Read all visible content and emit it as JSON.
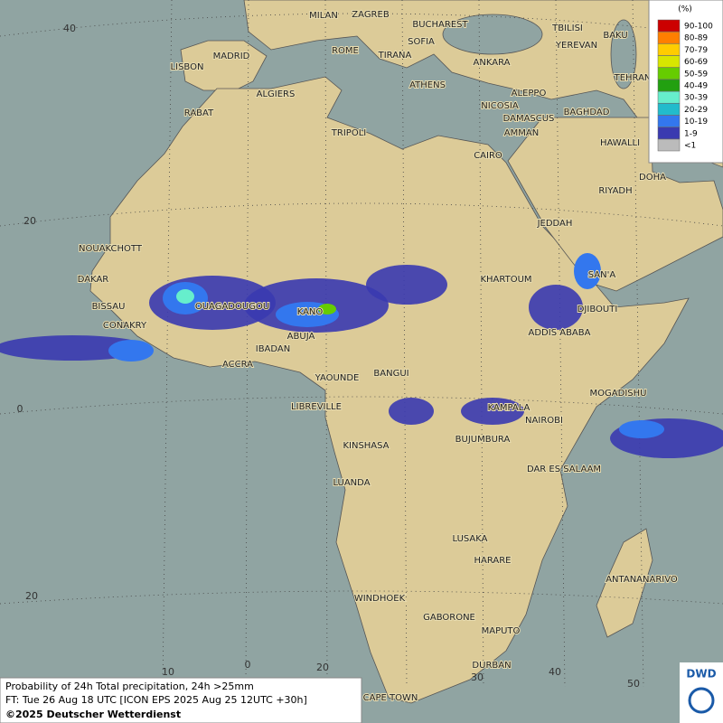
{
  "map": {
    "cities": [
      "MILAN",
      "ZAGREB",
      "BUCHAREST",
      "SOFIA",
      "ROME",
      "TIRANA",
      "ANKARA",
      "TBILISI",
      "BAKU",
      "YEREVAN",
      "TEHRAN",
      "LISBON",
      "MADRID",
      "ATHENS",
      "ALGIERS",
      "ALEPPO",
      "NICOSIA",
      "BAGHDAD",
      "RABAT",
      "TRIPOLI",
      "DAMASCUS",
      "AMMAN",
      "HAWALLI",
      "DOHA",
      "CAIRO",
      "RIYADH",
      "JEDDAH",
      "NOUAKCHOTT",
      "DAKAR",
      "KHARTOUM",
      "SAN'A",
      "BISSAU",
      "OUAGADOUGOU",
      "KANO",
      "DJIBOUTI",
      "CONAKRY",
      "ABUJA",
      "ADDIS ABABA",
      "IBADAN",
      "ACCRA",
      "YAOUNDE",
      "BANGUI",
      "MOGADISHU",
      "LIBREVILLE",
      "KAMPALA",
      "NAIROBI",
      "KINSHASA",
      "BUJUMBURA",
      "DAR ES SALAAM",
      "LUANDA",
      "LUSAKA",
      "HARARE",
      "ANTANANARIVO",
      "WINDHOEK",
      "GABORONE",
      "MAPUTO",
      "DURBAN",
      "CAPE TOWN"
    ],
    "graticule": {
      "labels": [
        "40",
        "20",
        "0",
        "20",
        "10",
        "0",
        "20",
        "30",
        "40",
        "50"
      ]
    },
    "legend": {
      "title": "(%)",
      "items": [
        {
          "label": "90-100",
          "color": "#cc0000"
        },
        {
          "label": "80-89",
          "color": "#ff7f00"
        },
        {
          "label": "70-79",
          "color": "#ffcc00"
        },
        {
          "label": "60-69",
          "color": "#d8e600"
        },
        {
          "label": "50-59",
          "color": "#66cc00"
        },
        {
          "label": "40-49",
          "color": "#22a010"
        },
        {
          "label": "30-39",
          "color": "#66eecc"
        },
        {
          "label": "20-29",
          "color": "#22bbcc"
        },
        {
          "label": "10-19",
          "color": "#3377ee"
        },
        {
          "label": "1-9",
          "color": "#3a3ab0"
        },
        {
          "label": "<1",
          "color": "#bbbbbb"
        }
      ]
    },
    "footer": {
      "line1": "Probability of 24h Total precipitation, 24h >25mm",
      "line2": "FT: Tue 26 Aug 18 UTC [ICON EPS 2025 Aug 25 12UTC +30h]",
      "line3": "©2025 Deutscher Wetterdienst"
    },
    "logo": "DWD"
  }
}
